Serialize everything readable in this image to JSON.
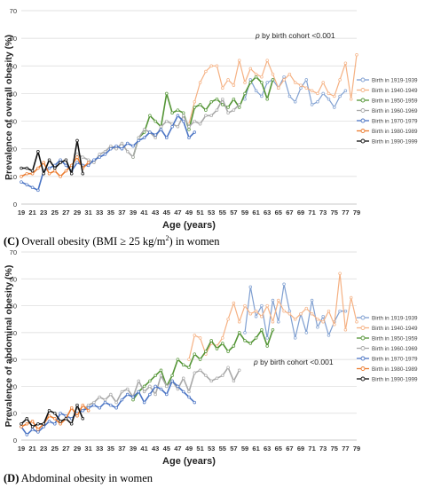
{
  "panels": [
    {
      "id": "C",
      "caption_letter": "(C)",
      "caption_text": " Overall obesity (BMI ≥ 25 kg/m",
      "caption_sup": "2",
      "caption_end": ") in women"
    },
    {
      "id": "D",
      "caption_letter": "(D)",
      "caption_text": " Abdominal obesity in women",
      "caption_sup": "",
      "caption_end": ""
    }
  ],
  "chart_data": [
    {
      "type": "line",
      "ylabel": "Prevalence of overall obesity (%)",
      "xlabel": "Age (years)",
      "annotation": "p by birth cohort <0.001",
      "annotation_italic": "p",
      "annotation_rest": " by birth cohort <0.001",
      "ylim": [
        0,
        70
      ],
      "yticks": [
        0,
        10,
        20,
        30,
        40,
        50,
        60,
        70
      ],
      "xlim": [
        19,
        79
      ],
      "xticks": [
        19,
        21,
        23,
        25,
        27,
        29,
        31,
        33,
        35,
        37,
        39,
        41,
        43,
        45,
        47,
        49,
        51,
        53,
        55,
        57,
        59,
        61,
        63,
        65,
        67,
        69,
        71,
        73,
        75,
        77,
        79
      ],
      "grid": true,
      "legend_position": "right",
      "series": [
        {
          "name": "Birth in 1919-1939",
          "color": "#7f9fd1",
          "x_start": 59,
          "values": [
            38,
            45,
            41,
            39,
            44,
            45,
            42,
            46,
            39,
            37,
            42,
            45,
            36,
            37,
            40,
            38,
            35,
            39,
            41
          ]
        },
        {
          "name": "Birth in 1940-1949",
          "color": "#f5b183",
          "x_start": 49,
          "values": [
            29,
            37,
            44,
            48,
            50,
            50,
            42,
            45,
            43,
            52,
            44,
            49,
            47,
            46,
            52,
            47,
            42,
            45,
            47,
            44,
            43,
            42,
            41,
            40,
            44,
            40,
            39,
            45,
            51,
            38,
            54
          ]
        },
        {
          "name": "Birth in 1950-1959",
          "color": "#549536",
          "x_start": 39,
          "values": [
            17,
            24,
            26,
            32,
            30,
            28,
            40,
            33,
            34,
            33,
            27,
            35,
            36,
            34,
            37,
            38,
            36,
            35,
            38,
            35,
            40,
            44,
            46,
            44,
            38,
            45
          ]
        },
        {
          "name": "Birth in 1960-1969",
          "color": "#a8a8a8",
          "x_start": 29,
          "values": [
            18,
            17,
            16,
            15,
            18,
            19,
            21,
            20,
            22,
            19,
            17,
            24,
            27,
            26,
            24,
            28,
            30,
            29,
            28,
            32,
            28,
            30,
            29,
            32,
            32,
            34,
            38,
            33,
            34,
            36
          ]
        },
        {
          "name": "Birth in 1970-1979",
          "color": "#4a74c4",
          "x_start": 19,
          "values": [
            8,
            7,
            6,
            5,
            12,
            13,
            14,
            16,
            14,
            12,
            15,
            14,
            14,
            16,
            17,
            18,
            20,
            21,
            20,
            22,
            21,
            23,
            24,
            26,
            25,
            27,
            24,
            28,
            32,
            30,
            24,
            26
          ]
        },
        {
          "name": "Birth in 1980-1989",
          "color": "#ec7c30",
          "x_start": 19,
          "values": [
            10,
            11,
            11,
            13,
            15,
            11,
            12,
            10,
            12,
            14,
            17,
            13,
            15
          ]
        },
        {
          "name": "Birth in 1990-1999",
          "color": "#111111",
          "x_start": 19,
          "values": [
            13,
            13,
            12,
            19,
            11,
            16,
            13,
            15,
            16,
            11,
            23,
            11
          ]
        }
      ]
    },
    {
      "type": "line",
      "ylabel": "Prevalence of abdominal obesity (%)",
      "xlabel": "Age (years)",
      "annotation": "p by birth cohort <0.001",
      "annotation_italic": "p",
      "annotation_rest": " by birth cohort <0.001",
      "ylim": [
        0,
        70
      ],
      "yticks": [
        0,
        10,
        20,
        30,
        40,
        50,
        60,
        70
      ],
      "xlim": [
        19,
        79
      ],
      "xticks": [
        19,
        21,
        23,
        25,
        27,
        29,
        31,
        33,
        35,
        37,
        39,
        41,
        43,
        45,
        47,
        49,
        51,
        53,
        55,
        57,
        59,
        61,
        63,
        65,
        67,
        69,
        71,
        73,
        75,
        77,
        79
      ],
      "grid": true,
      "legend_position": "right",
      "series": [
        {
          "name": "Birth in 1919-1939",
          "color": "#7f9fd1",
          "x_start": 59,
          "values": [
            40,
            57,
            46,
            50,
            38,
            52,
            44,
            58,
            48,
            38,
            47,
            40,
            52,
            42,
            46,
            39,
            44,
            48,
            48
          ]
        },
        {
          "name": "Birth in 1940-1949",
          "color": "#f5b183",
          "x_start": 49,
          "values": [
            30,
            39,
            38,
            32,
            36,
            35,
            38,
            45,
            51,
            44,
            50,
            47,
            48,
            46,
            50,
            44,
            52,
            48,
            47,
            45,
            47,
            49,
            47,
            45,
            44,
            48,
            43,
            62,
            41,
            53,
            44
          ]
        },
        {
          "name": "Birth in 1950-1959",
          "color": "#549536",
          "x_start": 39,
          "values": [
            15,
            18,
            20,
            22,
            24,
            26,
            20,
            24,
            30,
            28,
            27,
            32,
            30,
            33,
            37,
            34,
            36,
            33,
            35,
            40,
            37,
            36,
            38,
            41,
            35,
            41
          ]
        },
        {
          "name": "Birth in 1960-1969",
          "color": "#a8a8a8",
          "x_start": 29,
          "values": [
            12,
            11,
            13,
            14,
            16,
            15,
            17,
            14,
            18,
            19,
            16,
            22,
            18,
            20,
            17,
            24,
            20,
            22,
            19,
            23,
            18,
            25,
            26,
            24,
            22,
            23,
            24,
            27,
            22,
            26
          ]
        },
        {
          "name": "Birth in 1970-1979",
          "color": "#4a74c4",
          "x_start": 19,
          "values": [
            5,
            2,
            4,
            3,
            5,
            7,
            6,
            10,
            9,
            8,
            10,
            11,
            12,
            13,
            12,
            14,
            13,
            12,
            15,
            17,
            16,
            18,
            14,
            17,
            20,
            19,
            17,
            22,
            20,
            18,
            16,
            14
          ]
        },
        {
          "name": "Birth in 1980-1989",
          "color": "#ec7c30",
          "x_start": 19,
          "values": [
            5,
            6,
            7,
            4,
            6,
            9,
            8,
            6,
            8,
            12,
            9,
            13,
            11
          ]
        },
        {
          "name": "Birth in 1990-1999",
          "color": "#111111",
          "x_start": 19,
          "values": [
            6,
            8,
            5,
            6,
            6,
            11,
            10,
            7,
            8,
            6,
            13,
            8
          ]
        }
      ]
    }
  ]
}
